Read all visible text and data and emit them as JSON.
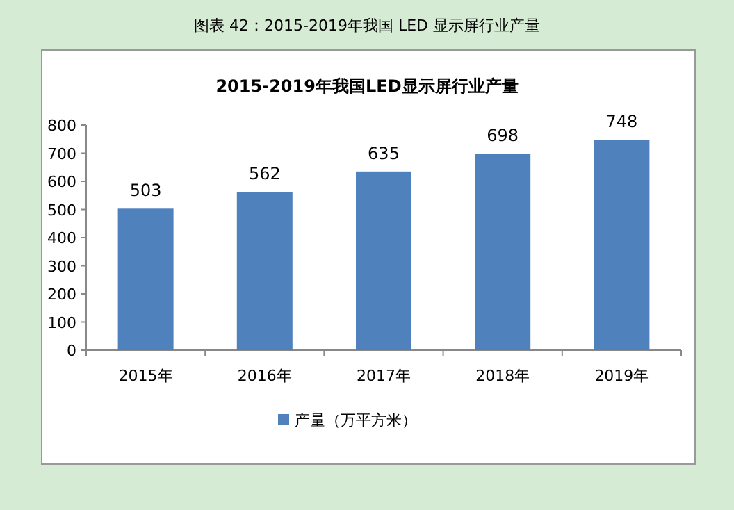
{
  "chart_data": {
    "type": "bar",
    "title": "图表 42：2015-2019年我国 LED 显示屏行业产量",
    "subtitle": "2015-2019年我国LED显示屏行业产量",
    "categories": [
      "2015年",
      "2016年",
      "2017年",
      "2018年",
      "2019年"
    ],
    "series": [
      {
        "name": "产量（万平方米）",
        "color": "#4f81bd",
        "values": [
          503,
          562,
          635,
          698,
          748
        ]
      }
    ],
    "ylim": [
      0,
      800
    ],
    "yticks": [
      0,
      100,
      200,
      300,
      400,
      500,
      600,
      700,
      800
    ],
    "data_labels": true,
    "legend": "bottom",
    "grid": false
  }
}
